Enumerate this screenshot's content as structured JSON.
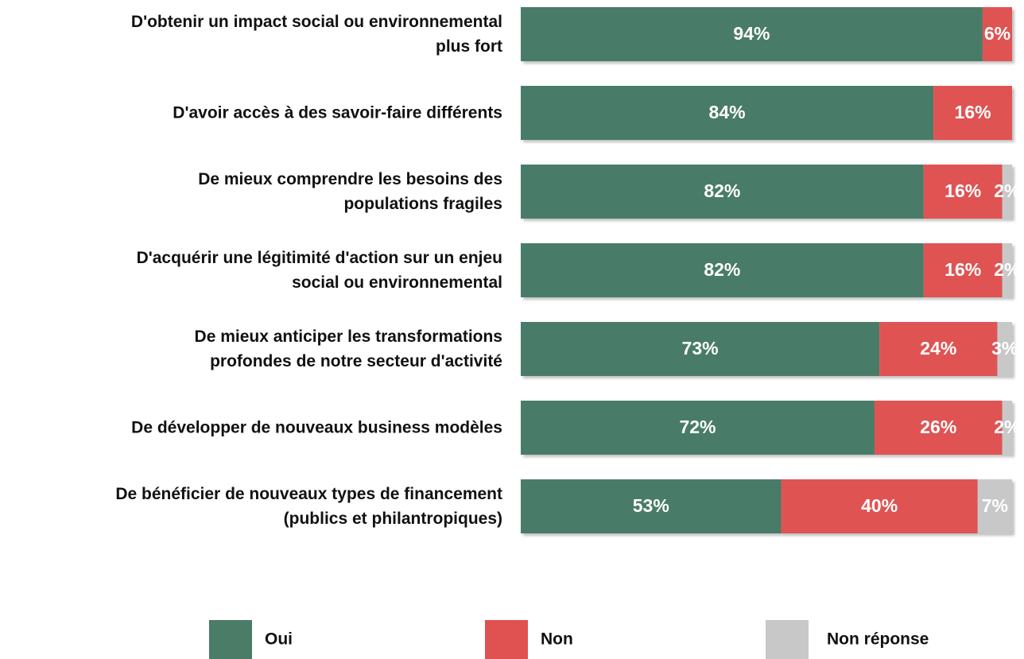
{
  "chart_data": {
    "type": "stacked-barh",
    "categories": [
      "D'obtenir un impact social ou environnemental\nplus fort",
      "D'avoir accès à des savoir-faire différents",
      "De mieux comprendre les besoins des\npopulations fragiles",
      "D'acquérir une légitimité d'action sur un enjeu\nsocial ou environnemental",
      "De mieux anticiper les transformations\nprofondes de notre secteur d'activité",
      "De développer de nouveaux business modèles",
      "De bénéficier de nouveaux types de financement\n(publics et philantropiques)"
    ],
    "series": [
      {
        "name": "Oui",
        "color": "#4a7c67",
        "values": [
          94,
          84,
          82,
          82,
          73,
          72,
          53
        ],
        "value_labels": [
          "94%",
          "84%",
          "82%",
          "82%",
          "73%",
          "72%",
          "53%"
        ]
      },
      {
        "name": "Non",
        "color": "#e05252",
        "values": [
          6,
          16,
          16,
          16,
          24,
          26,
          40
        ],
        "value_labels": [
          "6%",
          "16%",
          "16%",
          "16%",
          "24%",
          "26%",
          "40%"
        ]
      },
      {
        "name": "Non réponse",
        "color": "#c8c8c8",
        "values": [
          null,
          null,
          2,
          2,
          3,
          2,
          7
        ],
        "value_labels": [
          null,
          null,
          "2%",
          "2%",
          "3%",
          "2%",
          "7%"
        ]
      }
    ],
    "xlim": [
      0,
      100
    ],
    "legend": "bottom"
  }
}
